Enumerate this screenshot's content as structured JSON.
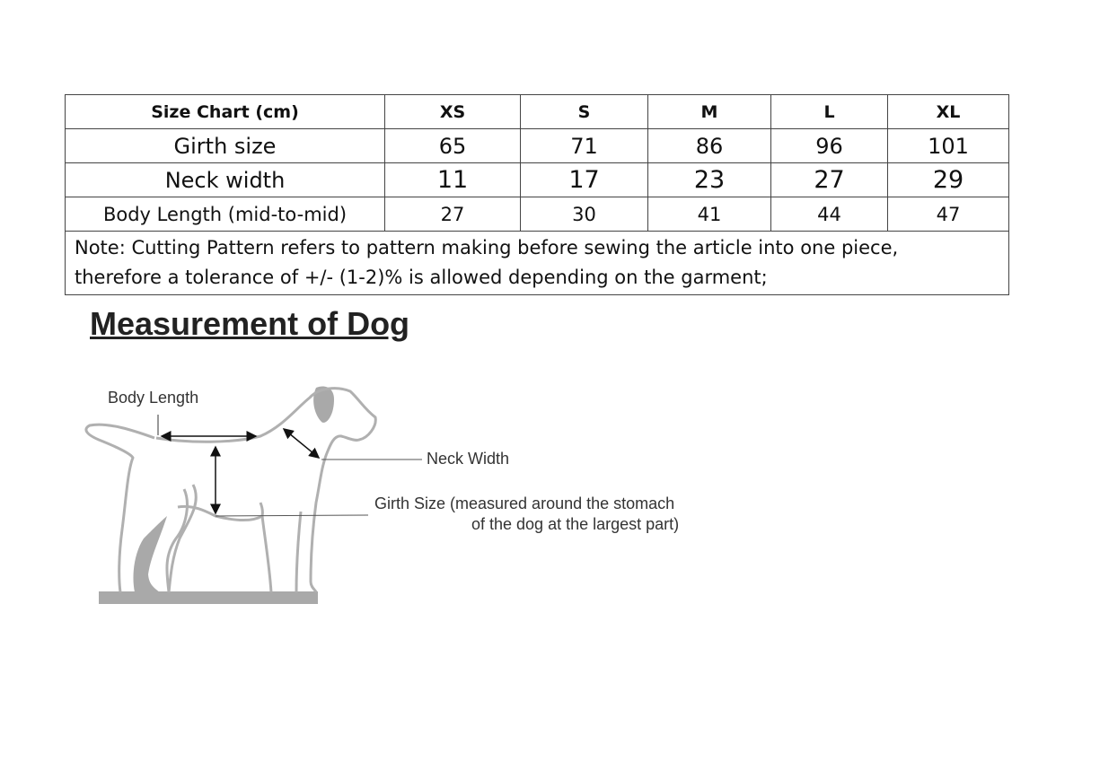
{
  "table": {
    "header": [
      "Size Chart (cm)",
      "XS",
      "S",
      "M",
      "L",
      "XL"
    ],
    "rows": [
      {
        "label": "Girth size",
        "values": [
          "65",
          "71",
          "86",
          "96",
          "101"
        ]
      },
      {
        "label": "Neck width",
        "values": [
          "11",
          "17",
          "23",
          "27",
          "29"
        ]
      },
      {
        "label": "Body Length (mid-to-mid)",
        "values": [
          "27",
          "30",
          "41",
          "44",
          "47"
        ]
      }
    ],
    "note_line1": "Note: Cutting Pattern refers to pattern making before sewing the article into one piece,",
    "note_line2": "therefore a tolerance of +/- (1-2)% is allowed depending on the garment;"
  },
  "diagram": {
    "title": "Measurement of Dog",
    "body_length": "Body Length",
    "neck_width": "Neck Width",
    "girth_line1": "Girth Size (measured around the stomach",
    "girth_line2": "of the dog at the largest part)",
    "outline_color": "#b0b0b0",
    "fill_color": "#a9a9a9"
  }
}
